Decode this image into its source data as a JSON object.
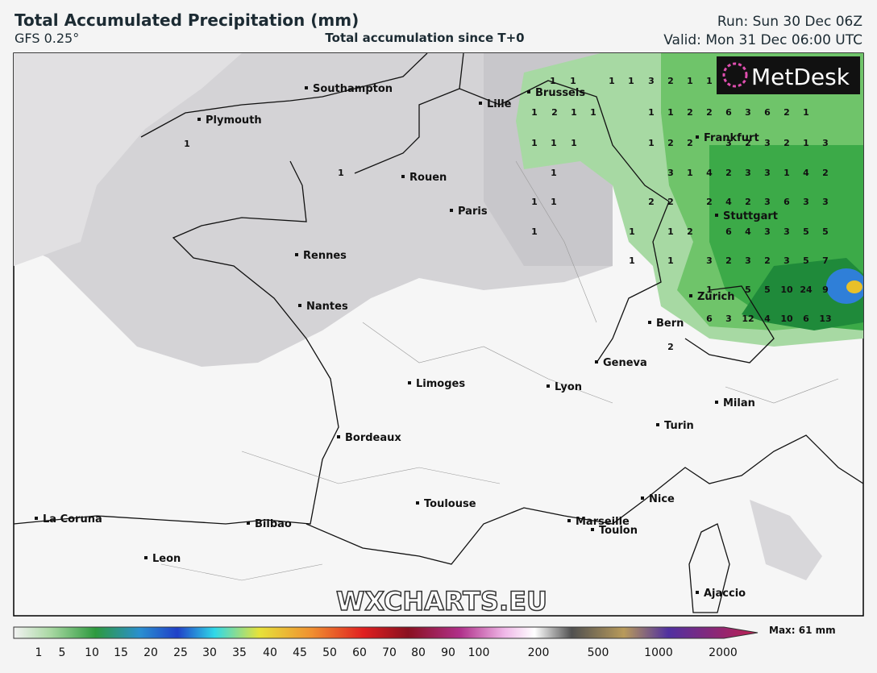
{
  "header": {
    "title": "Total Accumulated Precipitation (mm)",
    "model": "GFS 0.25°",
    "subtitle": "Total accumulation since T+0",
    "run": "Run: Sun 30 Dec 06Z",
    "valid": "Valid: Mon 31 Dec 06:00 UTC"
  },
  "logo": "MetDesk",
  "watermark": "WXCHARTS.EU",
  "cities": [
    "Southampton",
    "Lille",
    "Brussels",
    "Plymouth",
    "Frankfurt",
    "Rouen",
    "Paris",
    "Stuttgart",
    "Rennes",
    "Zurich",
    "Nantes",
    "Bern",
    "Geneva",
    "Limoges",
    "Lyon",
    "Milan",
    "Turin",
    "Bordeaux",
    "Toulouse",
    "Nice",
    "Marseille",
    "Toulon",
    "La Coruna",
    "Bilbao",
    "Leon",
    "Ajaccio"
  ],
  "grid_values": [
    1,
    1,
    1,
    1,
    3,
    2,
    1,
    1,
    1,
    2,
    1,
    1,
    1,
    1,
    2,
    2,
    6,
    3,
    6,
    2,
    1,
    1,
    1,
    1,
    1,
    2,
    2,
    3,
    2,
    3,
    2,
    1,
    3,
    1,
    3,
    1,
    4,
    2,
    3,
    3,
    1,
    4,
    2,
    1,
    1,
    2,
    2,
    2,
    4,
    2,
    3,
    6,
    3,
    3,
    1,
    1,
    1,
    2,
    6,
    4,
    3,
    3,
    5,
    5,
    1,
    1,
    3,
    2,
    3,
    2,
    3,
    5,
    7,
    1,
    5,
    5,
    10,
    24,
    9,
    6,
    3,
    12,
    4,
    10,
    6,
    13,
    2,
    1,
    1
  ],
  "legend": {
    "ticks": [
      1,
      5,
      10,
      15,
      20,
      25,
      30,
      35,
      40,
      45,
      50,
      60,
      70,
      80,
      90,
      100,
      200,
      500,
      1000,
      2000
    ],
    "max": "Max: 61 mm"
  }
}
